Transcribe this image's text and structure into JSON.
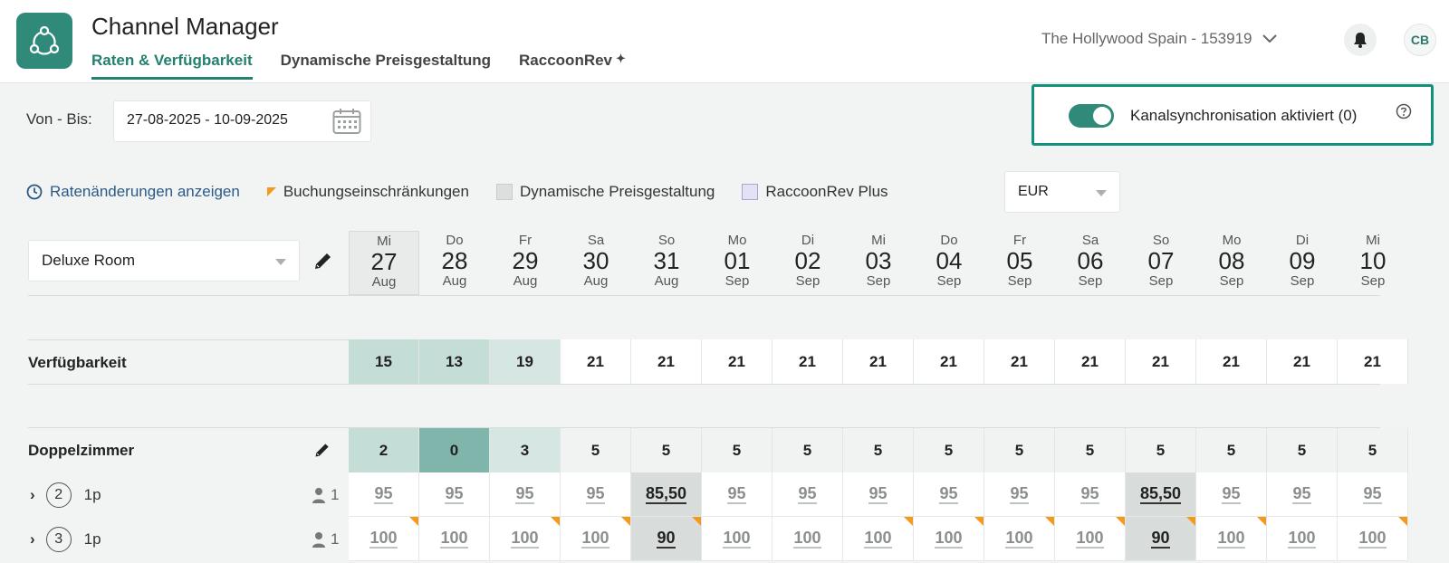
{
  "app": {
    "title": "Channel Manager",
    "tabs": [
      {
        "label": "Raten & Verfügbarkeit",
        "active": true
      },
      {
        "label": "Dynamische Preisgestaltung",
        "active": false
      },
      {
        "label": "RaccoonRev",
        "active": false
      }
    ],
    "property": "The Hollywood Spain - 153919",
    "avatar": "CB"
  },
  "filters": {
    "range_label": "Von - Bis:",
    "range_value": "27-08-2025 - 10-09-2025",
    "sync_label": "Kanalsynchronisation aktiviert (0)",
    "sync_enabled": true
  },
  "legend": {
    "rate_changes": "Ratenänderungen anzeigen",
    "booking_restrictions": "Buchungseinschränkungen",
    "dynamic_pricing": "Dynamische Preisgestaltung",
    "raccoonrev_plus": "RaccoonRev Plus",
    "currency": "EUR"
  },
  "room": "Deluxe Room",
  "days": [
    {
      "wd": "Mi",
      "d": "27",
      "m": "Aug"
    },
    {
      "wd": "Do",
      "d": "28",
      "m": "Aug"
    },
    {
      "wd": "Fr",
      "d": "29",
      "m": "Aug"
    },
    {
      "wd": "Sa",
      "d": "30",
      "m": "Aug"
    },
    {
      "wd": "So",
      "d": "31",
      "m": "Aug"
    },
    {
      "wd": "Mo",
      "d": "01",
      "m": "Sep"
    },
    {
      "wd": "Di",
      "d": "02",
      "m": "Sep"
    },
    {
      "wd": "Mi",
      "d": "03",
      "m": "Sep"
    },
    {
      "wd": "Do",
      "d": "04",
      "m": "Sep"
    },
    {
      "wd": "Fr",
      "d": "05",
      "m": "Sep"
    },
    {
      "wd": "Sa",
      "d": "06",
      "m": "Sep"
    },
    {
      "wd": "So",
      "d": "07",
      "m": "Sep"
    },
    {
      "wd": "Mo",
      "d": "08",
      "m": "Sep"
    },
    {
      "wd": "Di",
      "d": "09",
      "m": "Sep"
    },
    {
      "wd": "Mi",
      "d": "10",
      "m": "Sep"
    }
  ],
  "availability": {
    "label": "Verfügbarkeit",
    "values": [
      "15",
      "13",
      "19",
      "21",
      "21",
      "21",
      "21",
      "21",
      "21",
      "21",
      "21",
      "21",
      "21",
      "21",
      "21"
    ],
    "shade": [
      1,
      1,
      2,
      0,
      0,
      0,
      0,
      0,
      0,
      0,
      0,
      0,
      0,
      0,
      0
    ]
  },
  "roomtype": {
    "label": "Doppelzimmer",
    "values": [
      "2",
      "0",
      "3",
      "5",
      "5",
      "5",
      "5",
      "5",
      "5",
      "5",
      "5",
      "5",
      "5",
      "5",
      "5"
    ],
    "shade": [
      1,
      3,
      2,
      0,
      0,
      0,
      0,
      0,
      0,
      0,
      0,
      0,
      0,
      0,
      0
    ]
  },
  "rates": [
    {
      "circle": "2",
      "occupancy": "1p",
      "persons": "1",
      "values": [
        "95",
        "95",
        "95",
        "95",
        "85,50",
        "95",
        "95",
        "95",
        "95",
        "95",
        "95",
        "85,50",
        "95",
        "95",
        "95"
      ],
      "dynamic": [
        false,
        false,
        false,
        false,
        true,
        false,
        false,
        false,
        false,
        false,
        false,
        true,
        false,
        false,
        false
      ],
      "restricted": [
        false,
        false,
        false,
        false,
        false,
        false,
        false,
        false,
        false,
        false,
        false,
        false,
        false,
        false,
        false
      ]
    },
    {
      "circle": "3",
      "occupancy": "1p",
      "persons": "1",
      "values": [
        "100",
        "100",
        "100",
        "100",
        "90",
        "100",
        "100",
        "100",
        "100",
        "100",
        "100",
        "90",
        "100",
        "100",
        "100"
      ],
      "dynamic": [
        false,
        false,
        false,
        false,
        true,
        false,
        false,
        false,
        false,
        false,
        false,
        true,
        false,
        false,
        false
      ],
      "restricted": [
        true,
        false,
        true,
        true,
        true,
        false,
        false,
        true,
        true,
        true,
        true,
        true,
        true,
        false,
        true
      ]
    }
  ]
}
